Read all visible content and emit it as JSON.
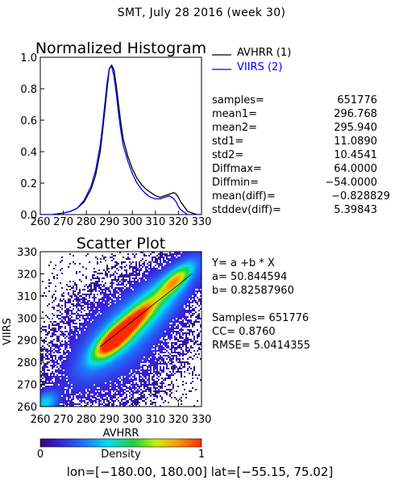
{
  "figure_title": "SMT,  July 28 2016 (week 30)",
  "footer": "lon=[−180.00, 180.00] lat=[−55.15, 75.02]",
  "chart_data": [
    {
      "type": "line",
      "title": "Normalized Histogram",
      "xlim": [
        260,
        330
      ],
      "ylim": [
        0.0,
        1.0
      ],
      "x_ticks": [
        "260",
        "270",
        "280",
        "290",
        "300",
        "310",
        "320",
        "330"
      ],
      "y_ticks": [
        "0.0",
        "0.2",
        "0.4",
        "0.6",
        "0.8",
        "1.0"
      ],
      "series": [
        {
          "name": "AVHRR (1)",
          "color": "#000000",
          "x": [
            260,
            265,
            270,
            273,
            276,
            279,
            282,
            284,
            286,
            287,
            288,
            289,
            290,
            291,
            292,
            293,
            294,
            295,
            296,
            298,
            300,
            302,
            304,
            306,
            308,
            310,
            312,
            314,
            316,
            318,
            319,
            320,
            321,
            322,
            323,
            324,
            326,
            328,
            330
          ],
          "values": [
            0.0,
            0.0,
            0.01,
            0.02,
            0.04,
            0.08,
            0.16,
            0.25,
            0.4,
            0.52,
            0.66,
            0.8,
            0.93,
            0.95,
            0.92,
            0.82,
            0.7,
            0.58,
            0.48,
            0.37,
            0.29,
            0.23,
            0.19,
            0.16,
            0.14,
            0.12,
            0.11,
            0.12,
            0.13,
            0.14,
            0.13,
            0.11,
            0.08,
            0.06,
            0.04,
            0.02,
            0.01,
            0.0,
            0.0
          ]
        },
        {
          "name": "VIIRS (2)",
          "color": "#0000ff",
          "x": [
            260,
            265,
            270,
            273,
            276,
            279,
            282,
            284,
            286,
            287,
            288,
            289,
            290,
            291,
            292,
            293,
            294,
            295,
            296,
            298,
            300,
            302,
            304,
            306,
            308,
            310,
            312,
            314,
            316,
            318,
            319,
            320,
            321,
            322,
            323,
            324,
            326,
            328,
            330
          ],
          "values": [
            0.0,
            0.0,
            0.01,
            0.02,
            0.04,
            0.09,
            0.18,
            0.28,
            0.44,
            0.56,
            0.7,
            0.84,
            0.93,
            0.94,
            0.88,
            0.77,
            0.64,
            0.53,
            0.44,
            0.34,
            0.26,
            0.2,
            0.16,
            0.13,
            0.11,
            0.1,
            0.1,
            0.11,
            0.12,
            0.1,
            0.08,
            0.05,
            0.03,
            0.02,
            0.01,
            0.0,
            0.0,
            0.0,
            0.0
          ]
        }
      ],
      "legend_position": "right"
    },
    {
      "type": "heatmap",
      "title": "Scatter Plot",
      "xlabel": "AVHRR",
      "ylabel": "VIIRS",
      "xlim": [
        260,
        330
      ],
      "ylim": [
        260,
        330
      ],
      "x_ticks": [
        "260",
        "270",
        "280",
        "290",
        "300",
        "310",
        "320",
        "330"
      ],
      "y_ticks": [
        "260",
        "270",
        "280",
        "290",
        "300",
        "310",
        "320",
        "330"
      ],
      "regression_line": {
        "a": 50.844594,
        "b": 0.8258796
      },
      "colorbar": {
        "label": "Density",
        "min_label": "0",
        "max_label": "1"
      }
    }
  ],
  "stats": {
    "samples_label": "samples=",
    "samples": "651776",
    "mean1_label": "mean1=",
    "mean1": "296.768",
    "mean2_label": "mean2=",
    "mean2": "295.940",
    "std1_label": "std1=",
    "std1": "11.0890",
    "std2_label": "std2=",
    "std2": "10.4541",
    "diffmax_label": "Diffmax=",
    "diffmax": "64.0000",
    "diffmin_label": "Diffmin=",
    "diffmin": "−54.0000",
    "meandiff_label": "mean(diff)=",
    "meandiff": "−0.828829",
    "stddev_label": "stddev(diff)=",
    "stddev": "5.39843"
  },
  "regression": {
    "equation": "Y= a +b * X",
    "a_line": "a= 50.844594",
    "b_line": "b= 0.82587960",
    "samples_line": "Samples= 651776",
    "cc_line": "CC=  0.8760",
    "rmse_line": "RMSE= 5.0414355"
  }
}
